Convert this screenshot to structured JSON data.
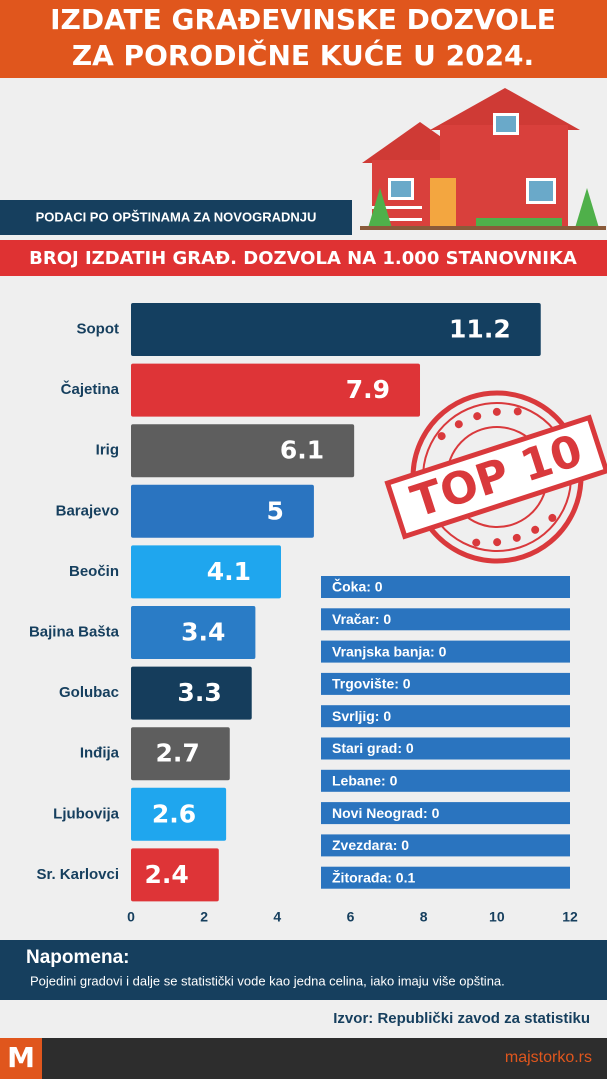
{
  "header": {
    "title_lines": [
      "IZDATE GRAĐEVINSKE DOZVOLE",
      "ZA PORODIČNE KUĆE U 2024."
    ]
  },
  "subtitle": "PODACI PO OPŠTINAMA ZA NOVOGRADNJU",
  "chart_data": {
    "type": "bar",
    "orientation": "horizontal",
    "title": "BROJ IZDATIH GRAĐ. DOZVOLA NA 1.000 STANOVNIKA",
    "categories": [
      "Sopot",
      "Čajetina",
      "Irig",
      "Barajevo",
      "Beočin",
      "Bajina Bašta",
      "Golubac",
      "Inđija",
      "Ljubovija",
      "Sr. Karlovci"
    ],
    "values": [
      11.2,
      7.9,
      6.1,
      5,
      4.1,
      3.4,
      3.3,
      2.7,
      2.6,
      2.4
    ],
    "colors": [
      "#143f60",
      "#de3437",
      "#5e5e5e",
      "#2a74c0",
      "#1fa6ee",
      "#2a7cc6",
      "#153d5c",
      "#5e5e5e",
      "#1fa6ee",
      "#de3437"
    ],
    "xlim": [
      0,
      12
    ],
    "xticks": [
      0,
      2,
      4,
      6,
      8,
      10,
      12
    ],
    "grid": false
  },
  "stamp": "TOP 10",
  "zero_list": [
    "Čoka: 0",
    "Vračar: 0",
    "Vranjska banja: 0",
    "Trgovište: 0",
    "Svrljig: 0",
    "Stari grad: 0",
    "Lebane: 0",
    "Novi Neograd: 0",
    "Zvezdara: 0",
    "Žitorađa: 0.1"
  ],
  "note": {
    "title": "Napomena:",
    "text": "Pojedini gradovi i dalje se statistički vode kao jedna celina, iako imaju više opština."
  },
  "source": "Izvor: Republički zavod za statistiku",
  "footer": {
    "logo": "M",
    "site": "majstorko.rs"
  }
}
